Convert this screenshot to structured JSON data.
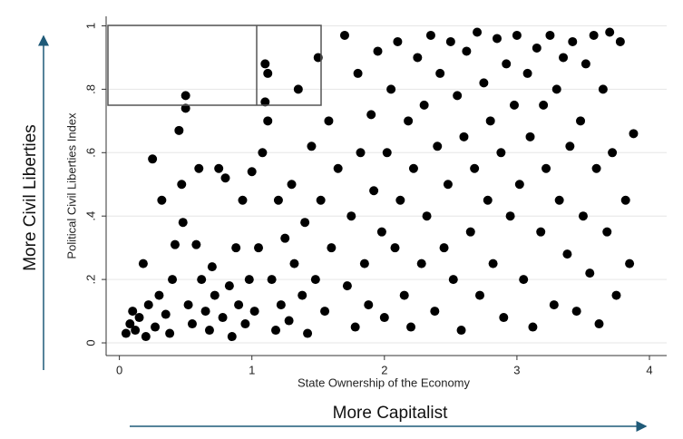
{
  "chart_data": {
    "type": "scatter",
    "x_label": "State Ownership of the Economy",
    "y_label": "Political Civil Liberties Index",
    "annotations": [
      "More Civil Liberties",
      "More Capitalist"
    ],
    "color": "#000000",
    "grid": true,
    "xlim": [
      -0.1,
      4.13
    ],
    "ylim": [
      -0.04,
      1.03
    ],
    "xticks": [
      0,
      1,
      2,
      3,
      4
    ],
    "yticks": [
      0,
      {
        "value": 0.2,
        "label": ".2"
      },
      {
        "value": 0.4,
        "label": ".4"
      },
      {
        "value": 0.6,
        "label": ".6"
      },
      {
        "value": 0.8,
        "label": ".8"
      },
      1
    ],
    "x": [
      0.05,
      0.08,
      0.1,
      0.12,
      0.15,
      0.18,
      0.2,
      0.22,
      0.25,
      0.27,
      0.3,
      0.32,
      0.35,
      0.38,
      0.4,
      0.42,
      0.45,
      0.47,
      0.48,
      0.5,
      0.5,
      0.52,
      0.55,
      0.58,
      0.6,
      0.62,
      0.65,
      0.68,
      0.7,
      0.72,
      0.75,
      0.78,
      0.8,
      0.83,
      0.85,
      0.88,
      0.9,
      0.93,
      0.95,
      0.98,
      1.0,
      1.02,
      1.05,
      1.08,
      1.1,
      1.12,
      1.1,
      1.12,
      1.15,
      1.18,
      1.2,
      1.22,
      1.25,
      1.28,
      1.3,
      1.32,
      1.35,
      1.38,
      1.4,
      1.42,
      1.45,
      1.48,
      1.5,
      1.52,
      1.55,
      1.58,
      1.6,
      1.65,
      1.7,
      1.72,
      1.75,
      1.78,
      1.8,
      1.82,
      1.85,
      1.88,
      1.9,
      1.92,
      1.95,
      1.98,
      2.0,
      2.02,
      2.05,
      2.08,
      2.1,
      2.12,
      2.15,
      2.18,
      2.2,
      2.22,
      2.25,
      2.28,
      2.3,
      2.32,
      2.35,
      2.38,
      2.4,
      2.42,
      2.45,
      2.48,
      2.5,
      2.52,
      2.55,
      2.58,
      2.6,
      2.62,
      2.65,
      2.68,
      2.7,
      2.72,
      2.75,
      2.78,
      2.8,
      2.82,
      2.85,
      2.88,
      2.9,
      2.92,
      2.95,
      2.98,
      3.0,
      3.02,
      3.05,
      3.08,
      3.1,
      3.12,
      3.15,
      3.18,
      3.2,
      3.22,
      3.25,
      3.28,
      3.3,
      3.32,
      3.35,
      3.38,
      3.4,
      3.42,
      3.45,
      3.48,
      3.5,
      3.52,
      3.55,
      3.58,
      3.6,
      3.62,
      3.65,
      3.68,
      3.7,
      3.72,
      3.75,
      3.78,
      3.82,
      3.85,
      3.88
    ],
    "values": [
      0.03,
      0.06,
      0.1,
      0.04,
      0.08,
      0.25,
      0.02,
      0.12,
      0.58,
      0.05,
      0.15,
      0.45,
      0.09,
      0.03,
      0.2,
      0.31,
      0.67,
      0.5,
      0.38,
      0.78,
      0.74,
      0.12,
      0.06,
      0.31,
      0.55,
      0.2,
      0.1,
      0.04,
      0.24,
      0.15,
      0.55,
      0.08,
      0.52,
      0.18,
      0.02,
      0.3,
      0.12,
      0.45,
      0.06,
      0.2,
      0.54,
      0.1,
      0.3,
      0.6,
      0.88,
      0.85,
      0.76,
      0.7,
      0.2,
      0.04,
      0.45,
      0.12,
      0.33,
      0.07,
      0.5,
      0.25,
      0.8,
      0.15,
      0.38,
      0.03,
      0.62,
      0.2,
      0.9,
      0.45,
      0.1,
      0.7,
      0.3,
      0.55,
      0.97,
      0.18,
      0.4,
      0.05,
      0.85,
      0.6,
      0.25,
      0.12,
      0.72,
      0.48,
      0.92,
      0.35,
      0.08,
      0.6,
      0.8,
      0.3,
      0.95,
      0.45,
      0.15,
      0.7,
      0.05,
      0.55,
      0.9,
      0.25,
      0.75,
      0.4,
      0.97,
      0.1,
      0.62,
      0.85,
      0.3,
      0.5,
      0.95,
      0.2,
      0.78,
      0.04,
      0.65,
      0.92,
      0.35,
      0.55,
      0.98,
      0.15,
      0.82,
      0.45,
      0.7,
      0.25,
      0.96,
      0.6,
      0.08,
      0.88,
      0.4,
      0.75,
      0.97,
      0.5,
      0.2,
      0.85,
      0.65,
      0.05,
      0.93,
      0.35,
      0.75,
      0.55,
      0.97,
      0.12,
      0.8,
      0.45,
      0.9,
      0.28,
      0.62,
      0.95,
      0.1,
      0.7,
      0.4,
      0.88,
      0.22,
      0.97,
      0.55,
      0.06,
      0.8,
      0.35,
      0.98,
      0.6,
      0.15,
      0.95,
      0.45,
      0.25,
      0.66
    ]
  }
}
